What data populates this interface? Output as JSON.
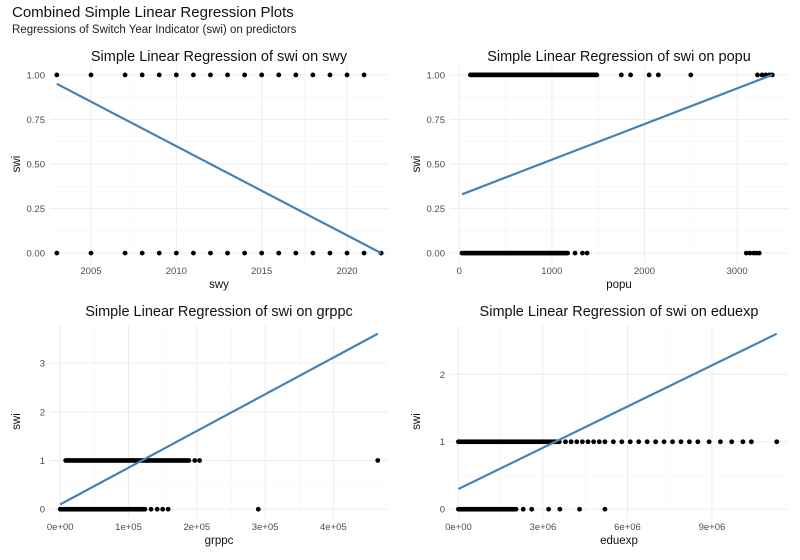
{
  "figure": {
    "title": "Combined Simple Linear Regression Plots",
    "subtitle": "Regressions of Switch Year Indicator (swi) on predictors"
  },
  "colors": {
    "line": "#4682B4",
    "points": "#000000",
    "grid": "#ebebeb"
  },
  "chart_data": [
    {
      "type": "scatter",
      "title": "Simple Linear Regression of swi on swy",
      "xlabel": "swy",
      "ylabel": "swi",
      "xlim": [
        2002.6,
        2022.4
      ],
      "ylim": [
        -0.05,
        1.05
      ],
      "x_ticks": [
        2005,
        2010,
        2015,
        2020
      ],
      "x_tick_labels": [
        "2005",
        "2010",
        "2015",
        "2020"
      ],
      "y_ticks": [
        0,
        0.25,
        0.5,
        0.75,
        1
      ],
      "y_tick_labels": [
        "0.00",
        "0.25",
        "0.50",
        "0.75",
        "1.00"
      ],
      "points": [
        {
          "y": 1,
          "x": [
            2003,
            2005,
            2007,
            2008,
            2009,
            2010,
            2011,
            2012,
            2013,
            2014,
            2015,
            2016,
            2017,
            2018,
            2019,
            2020,
            2021
          ]
        },
        {
          "y": 0,
          "x": [
            2003,
            2005,
            2007,
            2008,
            2009,
            2010,
            2011,
            2012,
            2013,
            2014,
            2015,
            2016,
            2017,
            2018,
            2019,
            2020,
            2021,
            2022
          ]
        }
      ],
      "fit_line": {
        "x": [
          2003,
          2022
        ],
        "y": [
          0.95,
          0.0
        ]
      }
    },
    {
      "type": "scatter",
      "title": "Simple Linear Regression of swi on popu",
      "xlabel": "popu",
      "ylabel": "swi",
      "xlim": [
        -100,
        3550
      ],
      "ylim": [
        -0.05,
        1.05
      ],
      "x_ticks": [
        0,
        1000,
        2000,
        3000
      ],
      "x_tick_labels": [
        "0",
        "1000",
        "2000",
        "3000"
      ],
      "y_ticks": [
        0,
        0.25,
        0.5,
        0.75,
        1
      ],
      "y_tick_labels": [
        "0.00",
        "0.25",
        "0.50",
        "0.75",
        "1.00"
      ],
      "points": [
        {
          "y": 1,
          "ranges": [
            [
              120,
              1500
            ]
          ],
          "x": [
            1750,
            1850,
            2050,
            2150,
            2500,
            3220,
            3270,
            3310,
            3350,
            3380
          ]
        },
        {
          "y": 0,
          "ranges": [
            [
              30,
              1180
            ]
          ],
          "x": [
            1250,
            1330,
            1380,
            3100,
            3140,
            3180,
            3210,
            3240
          ]
        }
      ],
      "fit_line": {
        "x": [
          30,
          3380
        ],
        "y": [
          0.33,
          1.0
        ]
      }
    },
    {
      "type": "scatter",
      "title": "Simple Linear Regression of swi on grppc",
      "xlabel": "grppc",
      "ylabel": "swi",
      "xlim": [
        -15000,
        480000
      ],
      "ylim": [
        -0.18,
        3.78
      ],
      "x_ticks": [
        0,
        100000,
        200000,
        300000,
        400000
      ],
      "x_tick_labels": [
        "0e+00",
        "1e+05",
        "2e+05",
        "3e+05",
        "4e+05"
      ],
      "y_ticks": [
        0,
        1,
        2,
        3
      ],
      "y_tick_labels": [
        "0",
        "1",
        "2",
        "3"
      ],
      "points": [
        {
          "y": 1,
          "ranges": [
            [
              8000,
              190000
            ]
          ],
          "x": [
            197000,
            204000,
            465000
          ]
        },
        {
          "y": 0,
          "ranges": [
            [
              0,
              125000
            ]
          ],
          "x": [
            133000,
            142000,
            150000,
            158000,
            290000
          ]
        }
      ],
      "fit_line": {
        "x": [
          0,
          465000
        ],
        "y": [
          0.1,
          3.6
        ]
      }
    },
    {
      "type": "scatter",
      "title": "Simple Linear Regression of swi on eduexp",
      "xlabel": "eduexp",
      "ylabel": "swi",
      "xlim": [
        -300000,
        11700000
      ],
      "ylim": [
        -0.13,
        2.73
      ],
      "x_ticks": [
        0,
        3000000,
        6000000,
        9000000
      ],
      "x_tick_labels": [
        "0e+00",
        "3e+06",
        "6e+06",
        "9e+06"
      ],
      "y_ticks": [
        0,
        1,
        2
      ],
      "y_tick_labels": [
        "0",
        "1",
        "2"
      ],
      "points": [
        {
          "y": 1,
          "ranges": [
            [
              0,
              3600000
            ]
          ],
          "x": [
            3800000,
            4000000,
            4200000,
            4400000,
            4600000,
            4800000,
            5000000,
            5200000,
            5500000,
            5800000,
            6100000,
            6400000,
            6700000,
            7000000,
            7300000,
            7600000,
            7900000,
            8200000,
            8500000,
            8900000,
            9300000,
            9700000,
            10100000,
            10400000,
            11300000
          ]
        },
        {
          "y": 0,
          "ranges": [
            [
              0,
              2100000
            ]
          ],
          "x": [
            2300000,
            2600000,
            3200000,
            3600000,
            4300000,
            5200000
          ]
        }
      ],
      "fit_line": {
        "x": [
          0,
          11300000
        ],
        "y": [
          0.3,
          2.6
        ]
      }
    }
  ]
}
